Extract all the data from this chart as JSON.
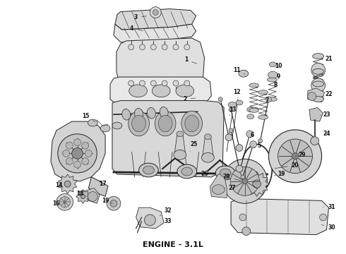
{
  "title": "ENGINE - 3.1L",
  "title_fontsize": 8,
  "title_fontweight": "bold",
  "bg_color": "#f5f5f0",
  "fig_width": 4.9,
  "fig_height": 3.6,
  "dpi": 100,
  "line_color": "#222222",
  "label_fontsize": 5.5,
  "label_color": "#111111",
  "gray1": "#c8c8c8",
  "gray2": "#d8d8d8",
  "gray3": "#e8e8e8",
  "gray4": "#b0b0b0",
  "white": "#f8f8f8"
}
